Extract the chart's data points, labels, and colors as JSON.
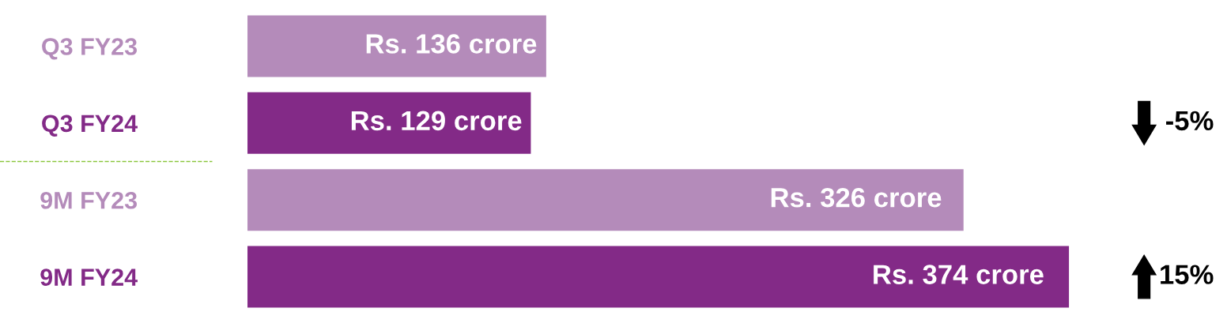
{
  "chart_data": {
    "type": "bar",
    "orientation": "horizontal",
    "categories": [
      "Q3 FY23",
      "Q3 FY24",
      "9M FY23",
      "9M FY24"
    ],
    "values": [
      136,
      129,
      326,
      374
    ],
    "colors": [
      "#b48bba",
      "#832a87",
      "#b48bba",
      "#832a87"
    ],
    "value_labels": [
      "Rs. 136 crore",
      "Rs. 129 crore",
      "Rs. 326 crore",
      "Rs. 374 crore"
    ],
    "annotations": [
      "-5%",
      "15%"
    ],
    "tick_labels": "y",
    "grid": false
  }
}
